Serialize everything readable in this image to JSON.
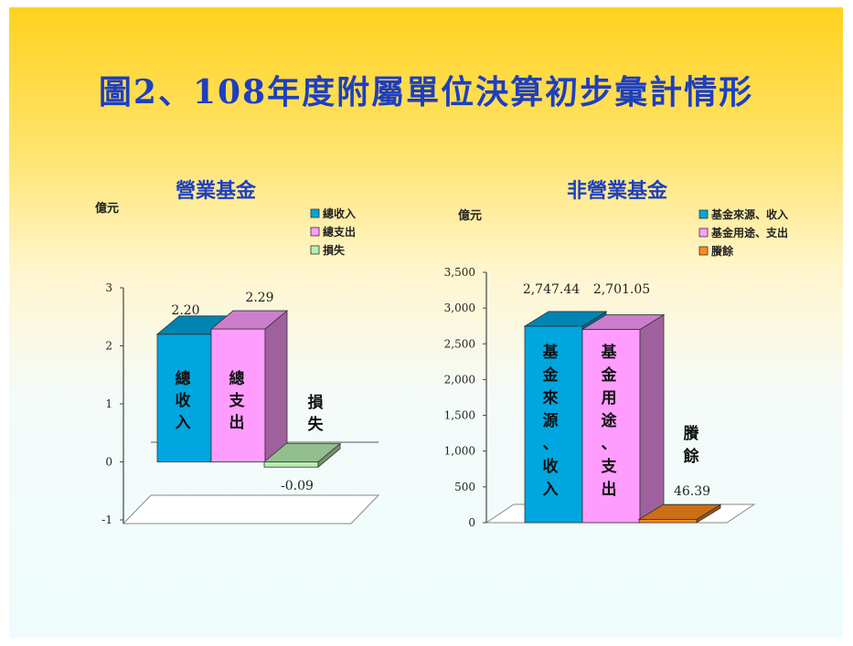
{
  "page": {
    "title": "圖2、108年度附屬單位決算初步彙計情形"
  },
  "colors": {
    "revenue": "#00a6df",
    "expense": "#ff9dff",
    "loss": "#b6efb0",
    "surplus": "#ff8a1c",
    "heading": "#1e3fc0"
  },
  "chart_data": [
    {
      "type": "bar",
      "title": "營業基金",
      "ylabel": "億元",
      "ylim": [
        -1,
        3
      ],
      "yticks": [
        "3",
        "2",
        "1",
        "0",
        "-1"
      ],
      "legend_position": "top-right",
      "categories": [
        "總收入",
        "總支出",
        "損失"
      ],
      "bar_labels": [
        "總\n收\n入",
        "總\n支\n出",
        "損\n失"
      ],
      "values": [
        2.2,
        2.29,
        -0.09
      ],
      "value_labels": [
        "2.20",
        "2.29",
        "-0.09"
      ],
      "legend": [
        "總收入",
        "總支出",
        "損失"
      ]
    },
    {
      "type": "bar",
      "title": "非營業基金",
      "ylabel": "億元",
      "ylim": [
        0,
        3500
      ],
      "yticks": [
        "3,500",
        "3,000",
        "2,500",
        "2,000",
        "1,500",
        "1,000",
        "500",
        "0"
      ],
      "legend_position": "top-right",
      "categories": [
        "基金來源、收入",
        "基金用途、支出",
        "賸餘"
      ],
      "bar_labels": [
        "基\n金\n來\n源\n、\n收\n入",
        "基\n金\n用\n途\n、\n支\n出",
        "賸\n餘"
      ],
      "values": [
        2747.44,
        2701.05,
        46.39
      ],
      "value_labels": [
        "2,747.44",
        "2,701.05",
        "46.39"
      ],
      "legend": [
        "基金來源、收入",
        "基金用途、支出",
        "賸餘"
      ]
    }
  ]
}
